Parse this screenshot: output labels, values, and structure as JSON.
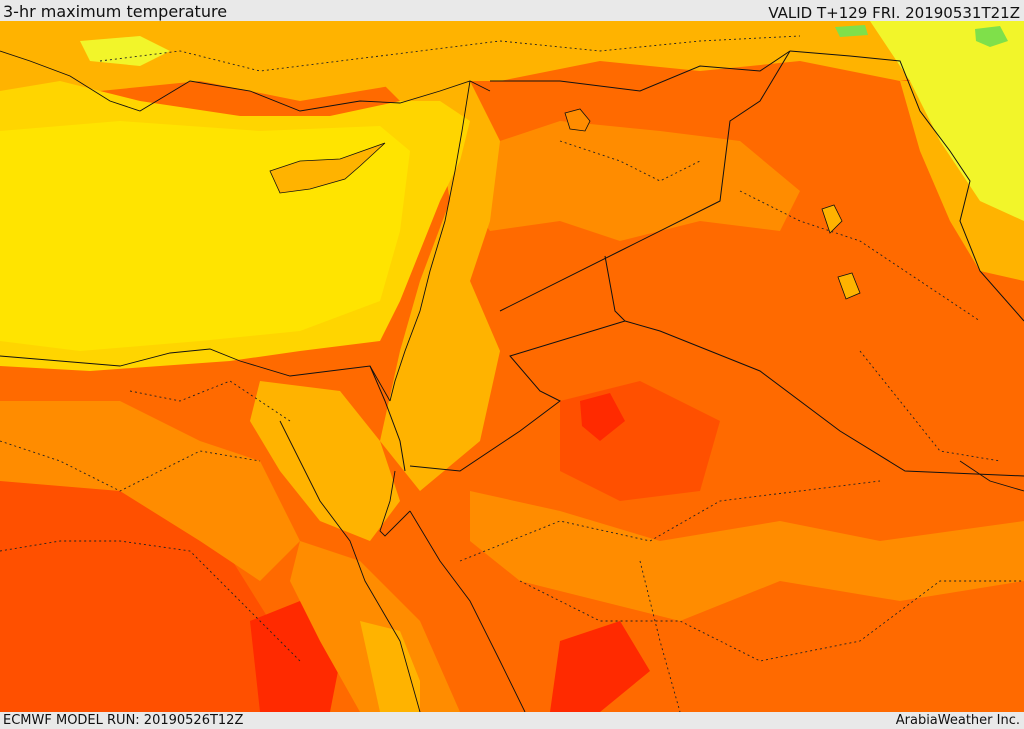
{
  "header": {
    "title": "3-hr maximum temperature",
    "valid": "VALID T+129 FRI. 20190531T21Z"
  },
  "footer": {
    "model_run": "ECMWF MODEL RUN: 20190526T12Z",
    "credit": "ArabiaWeather Inc."
  },
  "map": {
    "colors": {
      "sea_yellow": "#ffe400",
      "yellow": "#ffd500",
      "gold": "#ffb300",
      "orange": "#ff8c00",
      "dark_orange": "#ff6a00",
      "red_orange": "#ff5000",
      "red": "#ff2a00",
      "light_yellow": "#f2f52a",
      "green": "#7fe04a",
      "border": "#111111"
    }
  }
}
